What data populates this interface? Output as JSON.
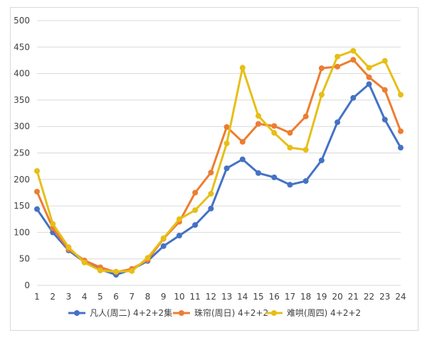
{
  "chart_data": {
    "type": "line",
    "title": "",
    "xlabel": "",
    "ylabel": "",
    "x": [
      1,
      2,
      3,
      4,
      5,
      6,
      7,
      8,
      9,
      10,
      11,
      12,
      13,
      14,
      15,
      16,
      17,
      18,
      19,
      20,
      21,
      22,
      23,
      24
    ],
    "ylim": [
      0,
      500
    ],
    "yticks": [
      0,
      50,
      100,
      150,
      200,
      250,
      300,
      350,
      400,
      450,
      500
    ],
    "grid": "horizontal",
    "legend_position": "bottom",
    "series": [
      {
        "name": "凡人(周二) 4+2+2集",
        "color": "#4472c4",
        "values": [
          144,
          100,
          66,
          44,
          30,
          20,
          30,
          46,
          74,
          94,
          114,
          145,
          221,
          238,
          212,
          204,
          190,
          197,
          236,
          308,
          354,
          380,
          313,
          260
        ]
      },
      {
        "name": "珠帘(周日) 4+2+2",
        "color": "#ed7d31",
        "values": [
          177,
          108,
          68,
          47,
          34,
          25,
          31,
          48,
          88,
          120,
          175,
          213,
          299,
          271,
          305,
          301,
          288,
          319,
          410,
          413,
          426,
          393,
          369,
          291
        ]
      },
      {
        "name": "难哄(周四) 4+2+2",
        "color": "#e6bf17",
        "values": [
          216,
          116,
          72,
          43,
          28,
          26,
          27,
          52,
          89,
          125,
          142,
          173,
          268,
          411,
          320,
          288,
          260,
          256,
          360,
          432,
          443,
          411,
          424,
          360
        ]
      }
    ]
  }
}
